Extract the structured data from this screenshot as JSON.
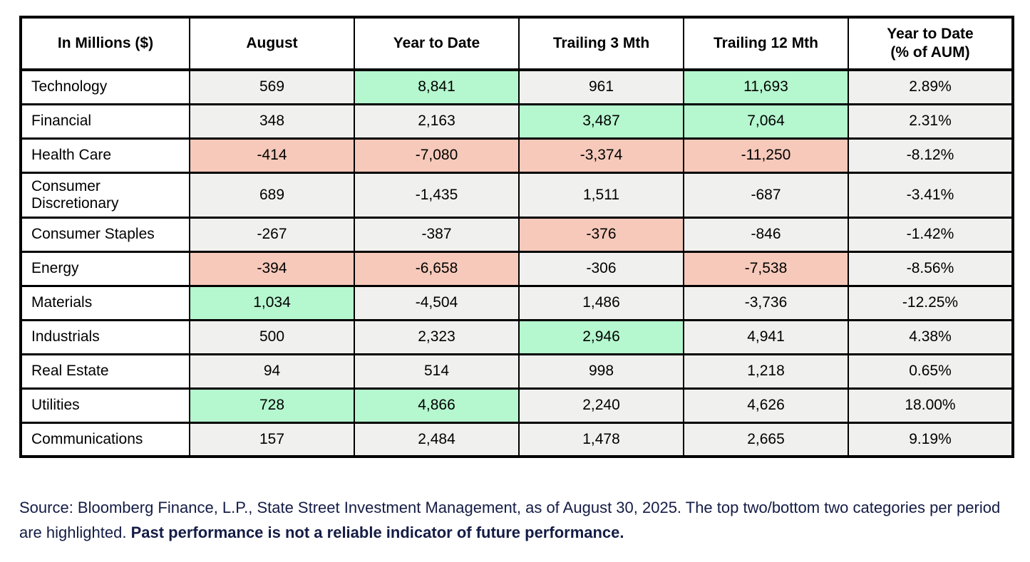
{
  "colors": {
    "highlight_green": "#b5f7cf",
    "highlight_red": "#f6c9ba",
    "cell_gray": "#f0f0ee",
    "footer_navy": "#141c45",
    "border_black": "#000000"
  },
  "table": {
    "header": {
      "col0": "In Millions ($)",
      "col1": "August",
      "col2": "Year to Date",
      "col3": "Trailing 3 Mth",
      "col4": "Trailing 12 Mth",
      "col5_line1": "Year to Date",
      "col5_line2": "(% of AUM)"
    },
    "rows": [
      {
        "label": "Technology",
        "cells": [
          {
            "value": "569",
            "hl": "none"
          },
          {
            "value": "8,841",
            "hl": "green"
          },
          {
            "value": "961",
            "hl": "none"
          },
          {
            "value": "11,693",
            "hl": "green"
          },
          {
            "value": "2.89%",
            "hl": "none"
          }
        ]
      },
      {
        "label": "Financial",
        "cells": [
          {
            "value": "348",
            "hl": "none"
          },
          {
            "value": "2,163",
            "hl": "none"
          },
          {
            "value": "3,487",
            "hl": "green"
          },
          {
            "value": "7,064",
            "hl": "green"
          },
          {
            "value": "2.31%",
            "hl": "none"
          }
        ]
      },
      {
        "label": "Health Care",
        "cells": [
          {
            "value": "-414",
            "hl": "red"
          },
          {
            "value": "-7,080",
            "hl": "red"
          },
          {
            "value": "-3,374",
            "hl": "red"
          },
          {
            "value": "-11,250",
            "hl": "red"
          },
          {
            "value": "-8.12%",
            "hl": "none"
          }
        ]
      },
      {
        "label": "Consumer Discretionary",
        "cells": [
          {
            "value": "689",
            "hl": "none"
          },
          {
            "value": "-1,435",
            "hl": "none"
          },
          {
            "value": "1,511",
            "hl": "none"
          },
          {
            "value": "-687",
            "hl": "none"
          },
          {
            "value": "-3.41%",
            "hl": "none"
          }
        ]
      },
      {
        "label": "Consumer Staples",
        "cells": [
          {
            "value": "-267",
            "hl": "none"
          },
          {
            "value": "-387",
            "hl": "none"
          },
          {
            "value": "-376",
            "hl": "red"
          },
          {
            "value": "-846",
            "hl": "none"
          },
          {
            "value": "-1.42%",
            "hl": "none"
          }
        ]
      },
      {
        "label": "Energy",
        "cells": [
          {
            "value": "-394",
            "hl": "red"
          },
          {
            "value": "-6,658",
            "hl": "red"
          },
          {
            "value": "-306",
            "hl": "none"
          },
          {
            "value": "-7,538",
            "hl": "red"
          },
          {
            "value": "-8.56%",
            "hl": "none"
          }
        ]
      },
      {
        "label": "Materials",
        "cells": [
          {
            "value": "1,034",
            "hl": "green"
          },
          {
            "value": "-4,504",
            "hl": "none"
          },
          {
            "value": "1,486",
            "hl": "none"
          },
          {
            "value": "-3,736",
            "hl": "none"
          },
          {
            "value": "-12.25%",
            "hl": "none"
          }
        ]
      },
      {
        "label": "Industrials",
        "cells": [
          {
            "value": "500",
            "hl": "none"
          },
          {
            "value": "2,323",
            "hl": "none"
          },
          {
            "value": "2,946",
            "hl": "green"
          },
          {
            "value": "4,941",
            "hl": "none"
          },
          {
            "value": "4.38%",
            "hl": "none"
          }
        ]
      },
      {
        "label": "Real Estate",
        "cells": [
          {
            "value": "94",
            "hl": "none"
          },
          {
            "value": "514",
            "hl": "none"
          },
          {
            "value": "998",
            "hl": "none"
          },
          {
            "value": "1,218",
            "hl": "none"
          },
          {
            "value": "0.65%",
            "hl": "none"
          }
        ]
      },
      {
        "label": "Utilities",
        "cells": [
          {
            "value": "728",
            "hl": "green"
          },
          {
            "value": "4,866",
            "hl": "green"
          },
          {
            "value": "2,240",
            "hl": "none"
          },
          {
            "value": "4,626",
            "hl": "none"
          },
          {
            "value": "18.00%",
            "hl": "none"
          }
        ]
      },
      {
        "label": "Communications",
        "cells": [
          {
            "value": "157",
            "hl": "none"
          },
          {
            "value": "2,484",
            "hl": "none"
          },
          {
            "value": "1,478",
            "hl": "none"
          },
          {
            "value": "2,665",
            "hl": "none"
          },
          {
            "value": "9.19%",
            "hl": "none"
          }
        ]
      }
    ]
  },
  "footer": {
    "text_normal": "Source: Bloomberg Finance, L.P., State Street Investment Management, as of August 30, 2025. The top two/bottom two categories per period are highlighted. ",
    "text_bold": "Past performance is not a reliable indicator of future performance."
  },
  "chart_data": {
    "type": "table",
    "title": "In Millions ($)",
    "categories": [
      "Technology",
      "Financial",
      "Health Care",
      "Consumer Discretionary",
      "Consumer Staples",
      "Energy",
      "Materials",
      "Industrials",
      "Real Estate",
      "Utilities",
      "Communications"
    ],
    "series": [
      {
        "name": "August",
        "values": [
          569,
          348,
          -414,
          689,
          -267,
          -394,
          1034,
          500,
          94,
          728,
          157
        ]
      },
      {
        "name": "Year to Date",
        "values": [
          8841,
          2163,
          -7080,
          -1435,
          -387,
          -6658,
          -4504,
          2323,
          514,
          4866,
          2484
        ]
      },
      {
        "name": "Trailing 3 Mth",
        "values": [
          961,
          3487,
          -3374,
          1511,
          -376,
          -306,
          1486,
          2946,
          998,
          2240,
          1478
        ]
      },
      {
        "name": "Trailing 12 Mth",
        "values": [
          11693,
          7064,
          -11250,
          -687,
          -846,
          -7538,
          -3736,
          4941,
          1218,
          4626,
          2665
        ]
      },
      {
        "name": "Year to Date (% of AUM)",
        "values": [
          2.89,
          2.31,
          -8.12,
          -3.41,
          -1.42,
          -8.56,
          -12.25,
          4.38,
          0.65,
          18.0,
          9.19
        ]
      }
    ],
    "highlight_rule": "top two per period green, bottom two per period red"
  }
}
